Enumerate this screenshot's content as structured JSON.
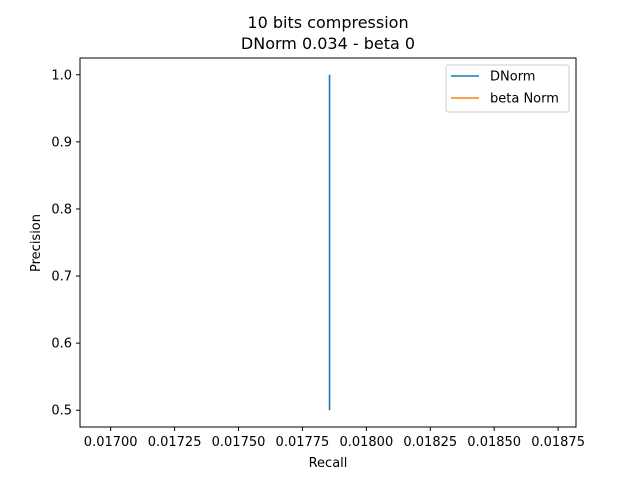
{
  "chart_data": {
    "type": "line",
    "title": "10 bits compression",
    "subtitle": "DNorm 0.034 - beta 0",
    "xlabel": "Recall",
    "ylabel": "Precision",
    "xlim": [
      0.01688,
      0.01882
    ],
    "ylim": [
      0.475,
      1.025
    ],
    "x_ticks": [
      0.017,
      0.01725,
      0.0175,
      0.01775,
      0.018,
      0.01825,
      0.0185,
      0.01875
    ],
    "x_tick_labels": [
      "0.01700",
      "0.01725",
      "0.01750",
      "0.01775",
      "0.01800",
      "0.01825",
      "0.01850",
      "0.01875"
    ],
    "y_ticks": [
      0.5,
      0.6,
      0.7,
      0.8,
      0.9,
      1.0
    ],
    "y_tick_labels": [
      "0.5",
      "0.6",
      "0.7",
      "0.8",
      "0.9",
      "1.0"
    ],
    "legend_position": "top-right",
    "grid": false,
    "series": [
      {
        "name": "DNorm",
        "color": "#1f77b4",
        "x": [
          0.017856,
          0.017856
        ],
        "y": [
          0.5,
          1.0
        ]
      },
      {
        "name": "beta Norm",
        "color": "#ff7f0e",
        "x": [],
        "y": []
      }
    ]
  }
}
